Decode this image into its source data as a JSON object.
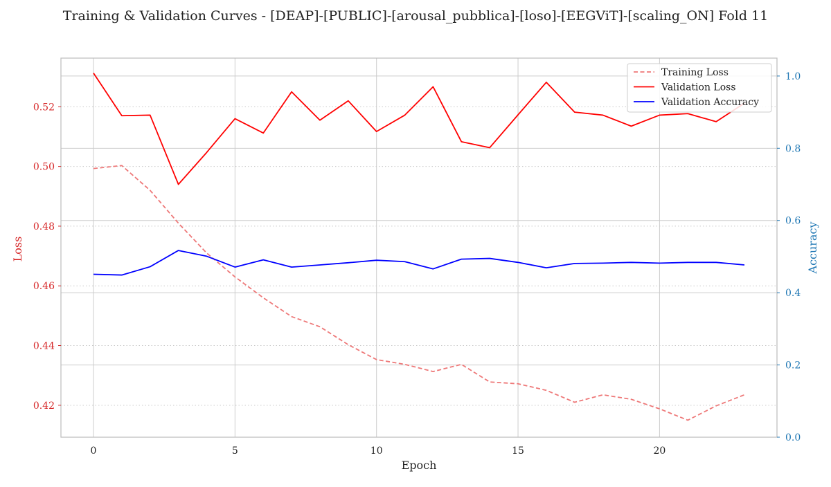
{
  "chart_data": {
    "type": "line",
    "title": "Training & Validation Curves - [DEAP]-[PUBLIC]-[arousal_pubblica]-[loso]-[EEGViT]-[scaling_ON] Fold 11",
    "xlabel": "Epoch",
    "ylabel_left": "Loss",
    "ylabel_right": "Accuracy",
    "x": [
      0,
      1,
      2,
      3,
      4,
      5,
      6,
      7,
      8,
      9,
      10,
      11,
      12,
      13,
      14,
      15,
      16,
      17,
      18,
      19,
      20,
      21,
      22,
      23
    ],
    "xlim": [
      -1.15,
      24.15
    ],
    "ylim_left": [
      0.4093,
      0.5363
    ],
    "ylim_right": [
      0,
      1.0496
    ],
    "x_ticks": [
      0,
      5,
      10,
      15,
      20
    ],
    "y_ticks_left": [
      0.42,
      0.44,
      0.46,
      0.48,
      0.5,
      0.52
    ],
    "y_ticks_right": [
      0.0,
      0.2,
      0.4,
      0.6,
      0.8,
      1.0
    ],
    "grid": true,
    "legend_position": "top-right",
    "colors": {
      "left_axis": "#d62728",
      "right_axis": "#1f77b4",
      "training_loss": "#ee7878",
      "validation_loss": "#ff0000",
      "validation_accuracy": "#0000ff",
      "grid": "#cccccc",
      "grid_dotted": "#c8c8c8",
      "spine": "#bbbbbb",
      "text": "#222222"
    },
    "series": [
      {
        "name": "Training Loss",
        "axis": "left",
        "style": "dashed",
        "values": [
          0.4993,
          0.5003,
          0.492,
          0.481,
          0.471,
          0.463,
          0.456,
          0.4497,
          0.4463,
          0.4403,
          0.4353,
          0.4337,
          0.4313,
          0.4337,
          0.4278,
          0.4272,
          0.425,
          0.421,
          0.4235,
          0.422,
          0.4188,
          0.415,
          0.4198,
          0.4235
        ]
      },
      {
        "name": "Validation Loss",
        "axis": "left",
        "style": "solid",
        "values": [
          0.5313,
          0.517,
          0.5172,
          0.494,
          0.5047,
          0.516,
          0.5112,
          0.525,
          0.5155,
          0.522,
          0.5117,
          0.5172,
          0.5267,
          0.5083,
          0.5063,
          0.5173,
          0.5282,
          0.5182,
          0.5172,
          0.5135,
          0.5172,
          0.5177,
          0.515,
          0.5212
        ]
      },
      {
        "name": "Validation Accuracy",
        "axis": "right",
        "style": "solid",
        "values": [
          0.451,
          0.449,
          0.472,
          0.517,
          0.501,
          0.471,
          0.491,
          0.471,
          0.477,
          0.483,
          0.49,
          0.486,
          0.466,
          0.493,
          0.495,
          0.484,
          0.469,
          0.481,
          0.482,
          0.484,
          0.482,
          0.484,
          0.484,
          0.477
        ]
      }
    ]
  }
}
